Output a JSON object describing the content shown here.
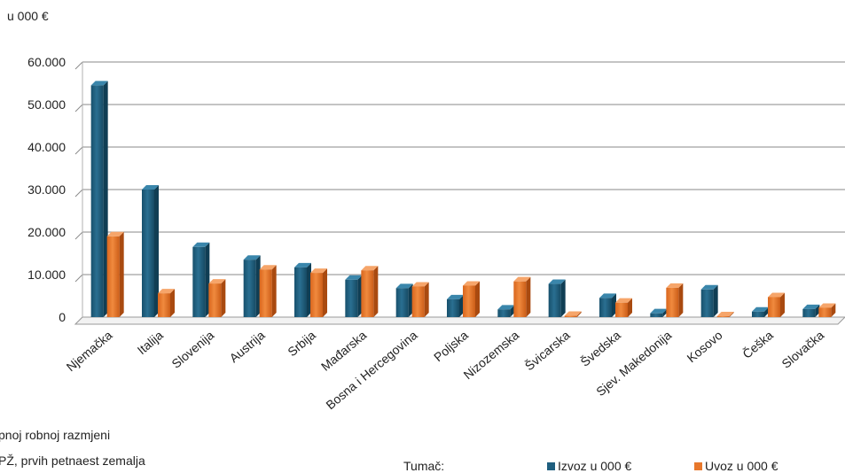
{
  "unit_label": "u 000 €",
  "caption_lines": [
    "pnoj robnoj razmjeni",
    "PŽ, prvih petnaest zemalja"
  ],
  "legend": {
    "title": "Tumač:",
    "items": [
      {
        "label": "Izvoz u 000 €",
        "color": "#1f5f7f"
      },
      {
        "label": "Uvoz u 000 €",
        "color": "#e8782c"
      }
    ]
  },
  "chart_data": {
    "type": "bar",
    "categories": [
      "Njemačka",
      "Italija",
      "Slovenija",
      "Austrija",
      "Srbija",
      "Mađarska",
      "Bosna i Hercegovina",
      "Poljska",
      "Nizozemska",
      "Švicarska",
      "Švedska",
      "Sjev. Makedonija",
      "Kosovo",
      "Češka",
      "Slovačka"
    ],
    "series": [
      {
        "name": "Izvoz u 000 €",
        "color": "#1f5f7f",
        "values": [
          54500,
          30000,
          16500,
          13500,
          11700,
          8800,
          6800,
          4200,
          1800,
          7800,
          4500,
          900,
          6500,
          1300,
          1900
        ]
      },
      {
        "name": "Uvoz u 000 €",
        "color": "#e8782c",
        "values": [
          19000,
          5600,
          7900,
          11200,
          10400,
          11000,
          7200,
          7400,
          8400,
          300,
          3400,
          6900,
          200,
          4700,
          2200
        ]
      }
    ],
    "yticks": [
      "0",
      "10.000",
      "20.000",
      "30.000",
      "40.000",
      "50.000",
      "60.000"
    ],
    "ylim": [
      0,
      60000
    ],
    "grid": true,
    "legend_position": "bottom-right"
  }
}
